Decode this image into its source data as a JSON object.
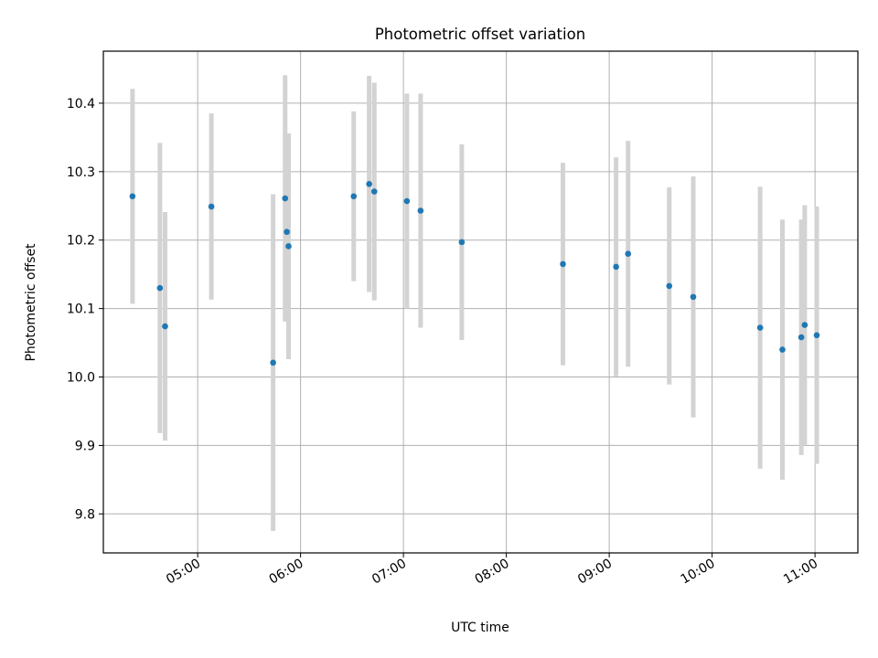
{
  "chart_data": {
    "type": "scatter",
    "title": "Photometric offset variation",
    "xlabel": "UTC time",
    "ylabel": "Photometric offset",
    "x_axis_kind": "time",
    "xlim": [
      "04:05",
      "11:25"
    ],
    "ylim": [
      9.743,
      10.476
    ],
    "grid": true,
    "x_ticks": [
      "05:00",
      "06:00",
      "07:00",
      "08:00",
      "09:00",
      "10:00",
      "11:00"
    ],
    "y_ticks": [
      "9.8",
      "9.9",
      "10.0",
      "10.1",
      "10.2",
      "10.3",
      "10.4"
    ],
    "colors": {
      "marker": "#1f77b4",
      "errorbar": "#d3d3d3",
      "grid": "#b0b0b0"
    },
    "points": [
      {
        "time": "04:22",
        "y": 10.264,
        "yerr": 0.157
      },
      {
        "time": "04:38",
        "y": 10.13,
        "yerr": 0.212
      },
      {
        "time": "04:41",
        "y": 10.074,
        "yerr": 0.167
      },
      {
        "time": "05:08",
        "y": 10.249,
        "yerr": 0.136
      },
      {
        "time": "05:44",
        "y": 10.021,
        "yerr": 0.246
      },
      {
        "time": "05:51",
        "y": 10.261,
        "yerr": 0.18
      },
      {
        "time": "05:52",
        "y": 10.212,
        "yerr": 0.13
      },
      {
        "time": "05:53",
        "y": 10.191,
        "yerr": 0.165
      },
      {
        "time": "06:31",
        "y": 10.264,
        "yerr": 0.124
      },
      {
        "time": "06:40",
        "y": 10.282,
        "yerr": 0.158
      },
      {
        "time": "06:43",
        "y": 10.271,
        "yerr": 0.159
      },
      {
        "time": "07:02",
        "y": 10.257,
        "yerr": 0.157
      },
      {
        "time": "07:10",
        "y": 10.243,
        "yerr": 0.171
      },
      {
        "time": "07:34",
        "y": 10.197,
        "yerr": 0.143
      },
      {
        "time": "08:33",
        "y": 10.165,
        "yerr": 0.148
      },
      {
        "time": "09:04",
        "y": 10.161,
        "yerr": 0.16
      },
      {
        "time": "09:11",
        "y": 10.18,
        "yerr": 0.165
      },
      {
        "time": "09:35",
        "y": 10.133,
        "yerr": 0.144
      },
      {
        "time": "09:49",
        "y": 10.117,
        "yerr": 0.176
      },
      {
        "time": "10:28",
        "y": 10.072,
        "yerr": 0.206
      },
      {
        "time": "10:41",
        "y": 10.04,
        "yerr": 0.19
      },
      {
        "time": "10:52",
        "y": 10.058,
        "yerr": 0.172
      },
      {
        "time": "10:54",
        "y": 10.076,
        "yerr": 0.175
      },
      {
        "time": "11:01",
        "y": 10.061,
        "yerr": 0.188
      }
    ]
  }
}
